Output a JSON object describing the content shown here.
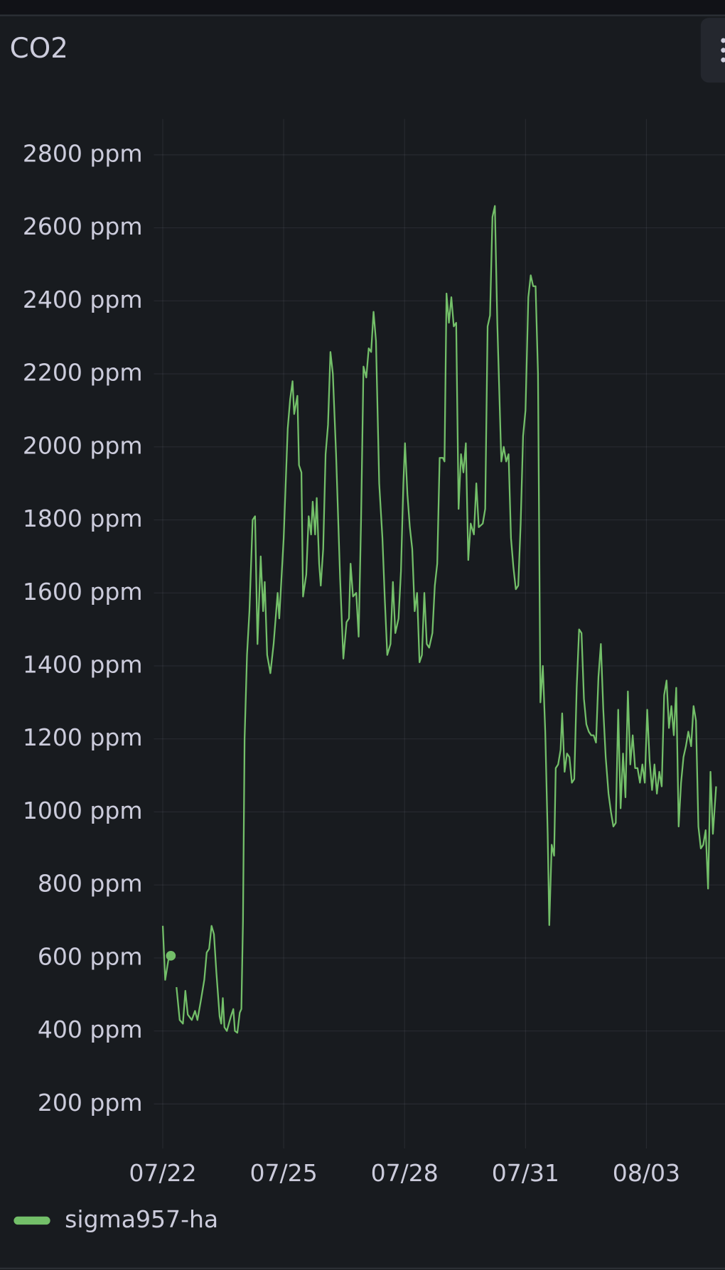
{
  "chart_data": {
    "type": "line",
    "title": "CO2",
    "x": [
      0,
      0.06,
      0.14,
      null,
      0.2,
      null,
      0.34,
      0.42,
      0.5,
      0.56,
      0.62,
      0.72,
      0.8,
      0.86,
      0.94,
      1.03,
      1.09,
      1.15,
      1.21,
      1.27,
      1.33,
      1.41,
      1.45,
      1.49,
      1.53,
      1.59,
      1.69,
      1.75,
      1.79,
      1.85,
      1.91,
      1.95,
      1.99,
      2.03,
      2.09,
      2.15,
      2.23,
      2.29,
      2.35,
      2.43,
      2.49,
      2.53,
      2.59,
      2.67,
      2.75,
      2.85,
      2.89,
      3.0,
      3.1,
      3.16,
      3.22,
      3.26,
      3.34,
      3.38,
      3.44,
      3.48,
      3.56,
      3.62,
      3.68,
      3.72,
      3.78,
      3.82,
      3.88,
      3.92,
      3.98,
      4.04,
      4.1,
      4.16,
      4.22,
      4.3,
      4.4,
      4.48,
      4.56,
      4.62,
      4.66,
      4.72,
      4.8,
      4.86,
      4.92,
      4.98,
      5.05,
      5.11,
      5.17,
      5.23,
      5.29,
      5.37,
      5.45,
      5.51,
      5.57,
      5.65,
      5.71,
      5.77,
      5.85,
      5.91,
      5.97,
      6.01,
      6.07,
      6.13,
      6.19,
      6.25,
      6.31,
      6.37,
      6.43,
      6.49,
      6.55,
      6.61,
      6.69,
      6.75,
      6.81,
      6.87,
      6.95,
      6.99,
      7.04,
      7.1,
      7.16,
      7.22,
      7.28,
      7.34,
      7.4,
      7.46,
      7.52,
      7.58,
      7.64,
      7.72,
      7.78,
      7.84,
      7.94,
      8.0,
      8.06,
      8.12,
      8.18,
      8.24,
      8.3,
      8.4,
      8.46,
      8.52,
      8.58,
      8.64,
      8.7,
      8.76,
      8.82,
      8.88,
      8.94,
      9.0,
      9.07,
      9.13,
      9.19,
      9.25,
      9.31,
      9.37,
      9.43,
      9.49,
      9.55,
      9.59,
      9.65,
      9.71,
      9.75,
      9.81,
      9.87,
      9.91,
      9.97,
      10.03,
      10.09,
      10.15,
      10.21,
      10.27,
      10.33,
      10.39,
      10.45,
      10.51,
      10.57,
      10.63,
      10.69,
      10.75,
      10.81,
      10.87,
      10.93,
      10.99,
      11.06,
      11.12,
      11.18,
      11.24,
      11.3,
      11.36,
      11.42,
      11.48,
      11.54,
      11.6,
      11.66,
      11.72,
      11.78,
      11.84,
      11.9,
      11.96,
      12.02,
      12.08,
      12.14,
      12.2,
      12.26,
      12.32,
      12.38,
      12.44,
      12.5,
      12.56,
      12.62,
      12.68,
      12.74,
      12.8,
      12.86,
      12.92,
      12.98,
      13.04,
      13.11,
      13.17,
      13.23,
      13.29,
      13.35,
      13.41,
      13.47,
      13.53,
      13.59,
      13.65,
      13.73
    ],
    "series": [
      {
        "name": "sigma957-ha",
        "color": "#73bf69",
        "values": [
          688,
          540,
          595,
          null,
          606,
          null,
          520,
          430,
          420,
          510,
          445,
          430,
          455,
          430,
          480,
          540,
          615,
          625,
          688,
          665,
          560,
          440,
          420,
          490,
          410,
          400,
          440,
          460,
          400,
          395,
          450,
          460,
          700,
          1200,
          1430,
          1550,
          1800,
          1810,
          1460,
          1700,
          1550,
          1630,
          1430,
          1380,
          1460,
          1600,
          1530,
          1750,
          2050,
          2130,
          2180,
          2090,
          2140,
          1950,
          1930,
          1590,
          1650,
          1810,
          1760,
          1850,
          1760,
          1860,
          1680,
          1620,
          1720,
          1980,
          2060,
          2260,
          2200,
          1980,
          1640,
          1420,
          1520,
          1530,
          1680,
          1590,
          1600,
          1480,
          1800,
          2220,
          2190,
          2270,
          2260,
          2370,
          2290,
          1900,
          1750,
          1580,
          1430,
          1460,
          1630,
          1490,
          1530,
          1660,
          1900,
          2010,
          1870,
          1780,
          1720,
          1550,
          1600,
          1410,
          1430,
          1600,
          1460,
          1450,
          1490,
          1620,
          1680,
          1970,
          1970,
          1960,
          2420,
          2340,
          2410,
          2330,
          2340,
          1830,
          1980,
          1930,
          2010,
          1690,
          1790,
          1760,
          1900,
          1780,
          1790,
          1830,
          2330,
          2360,
          2630,
          2660,
          2340,
          1960,
          2000,
          1960,
          1980,
          1750,
          1670,
          1610,
          1620,
          1790,
          2030,
          2100,
          2410,
          2470,
          2440,
          2440,
          2200,
          1300,
          1400,
          1220,
          940,
          690,
          910,
          880,
          1120,
          1130,
          1170,
          1270,
          1110,
          1160,
          1150,
          1080,
          1090,
          1340,
          1500,
          1490,
          1310,
          1240,
          1220,
          1210,
          1210,
          1190,
          1370,
          1460,
          1280,
          1150,
          1050,
          1000,
          960,
          970,
          1280,
          1010,
          1160,
          1040,
          1330,
          1130,
          1210,
          1120,
          1120,
          1080,
          1130,
          1080,
          1280,
          1140,
          1060,
          1130,
          1050,
          1110,
          1070,
          1320,
          1360,
          1230,
          1290,
          1210,
          1340,
          960,
          1080,
          1150,
          1180,
          1220,
          1180,
          1290,
          1250,
          960,
          900,
          910,
          950,
          790,
          1110,
          940,
          1070
        ]
      }
    ],
    "xlim": [
      -0.22,
      13.95
    ],
    "xticks": [
      {
        "value": 0,
        "label": "07/22"
      },
      {
        "value": 3,
        "label": "07/25"
      },
      {
        "value": 6,
        "label": "07/28"
      },
      {
        "value": 9,
        "label": "07/31"
      },
      {
        "value": 12,
        "label": "08/03"
      }
    ],
    "ylim": [
      78,
      2898
    ],
    "yticks": [
      {
        "value": 200,
        "label": "200 ppm"
      },
      {
        "value": 400,
        "label": "400 ppm"
      },
      {
        "value": 600,
        "label": "600 ppm"
      },
      {
        "value": 800,
        "label": "800 ppm"
      },
      {
        "value": 1000,
        "label": "1000 ppm"
      },
      {
        "value": 1200,
        "label": "1200 ppm"
      },
      {
        "value": 1400,
        "label": "1400 ppm"
      },
      {
        "value": 1600,
        "label": "1600 ppm"
      },
      {
        "value": 1800,
        "label": "1800 ppm"
      },
      {
        "value": 2000,
        "label": "2000 ppm"
      },
      {
        "value": 2200,
        "label": "2200 ppm"
      },
      {
        "value": 2400,
        "label": "2400 ppm"
      },
      {
        "value": 2600,
        "label": "2600 ppm"
      },
      {
        "value": 2800,
        "label": "2800 ppm"
      }
    ],
    "grid": true
  }
}
